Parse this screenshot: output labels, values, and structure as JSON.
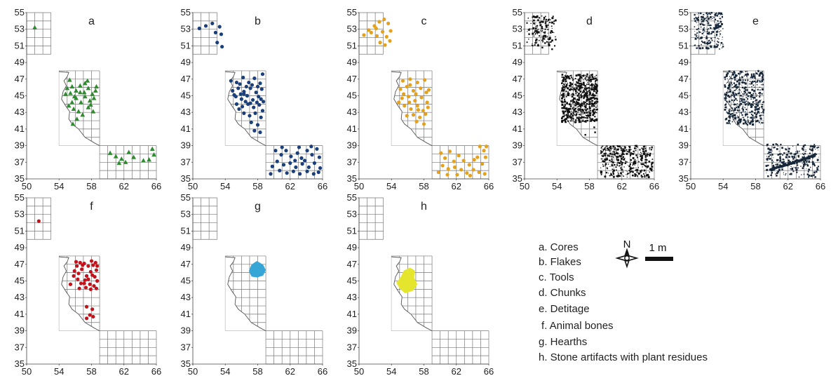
{
  "chart_data": {
    "type": "scatter",
    "panels": [
      {
        "label": "a",
        "name": "Cores",
        "color": "#2e8b2e",
        "marker": "triangle",
        "render": "points",
        "points": [
          [
            51,
            53.2
          ],
          [
            55.3,
            46.9
          ],
          [
            57.5,
            46.8
          ],
          [
            55,
            45.9
          ],
          [
            55.6,
            46.1
          ],
          [
            56.1,
            45.6
          ],
          [
            56.6,
            46.2
          ],
          [
            57.1,
            45.4
          ],
          [
            57.6,
            45.9
          ],
          [
            58.1,
            45.2
          ],
          [
            58.6,
            46.1
          ],
          [
            58.3,
            44.7
          ],
          [
            57.8,
            44.4
          ],
          [
            57.2,
            44.9
          ],
          [
            56.7,
            44.2
          ],
          [
            56.1,
            44.7
          ],
          [
            55.6,
            44.2
          ],
          [
            55.2,
            43.8
          ],
          [
            55.8,
            43.4
          ],
          [
            56.4,
            43.1
          ],
          [
            56.9,
            42.7
          ],
          [
            57.6,
            43.6
          ],
          [
            58.2,
            43.1
          ],
          [
            56.2,
            42.2
          ],
          [
            55.7,
            41.6
          ],
          [
            54.8,
            45.2
          ],
          [
            55.4,
            45.3
          ],
          [
            57.2,
            46.5
          ],
          [
            58.5,
            45.6
          ],
          [
            57.9,
            43.9
          ],
          [
            56.6,
            45.4
          ],
          [
            55.9,
            44.9
          ],
          [
            60.3,
            38.1
          ],
          [
            61,
            37.7
          ],
          [
            61.7,
            37.4
          ],
          [
            62.6,
            38.2
          ],
          [
            63.2,
            37.6
          ],
          [
            64.4,
            37.2
          ],
          [
            65.1,
            37.3
          ],
          [
            65.5,
            38.6
          ],
          [
            65.7,
            37.9
          ],
          [
            62.2,
            37
          ],
          [
            61.4,
            36.9
          ]
        ]
      },
      {
        "label": "b",
        "name": "Flakes",
        "color": "#1a3f7a",
        "marker": "circle",
        "render": "points",
        "points": [
          [
            50.8,
            53.1
          ],
          [
            51.6,
            53.4
          ],
          [
            52.4,
            53.7
          ],
          [
            52.8,
            52.6
          ],
          [
            53.3,
            53.3
          ],
          [
            53.5,
            52.4
          ],
          [
            53,
            51.4
          ],
          [
            53.6,
            50.9
          ],
          [
            54.7,
            46.8
          ],
          [
            55.4,
            46.6
          ],
          [
            56.2,
            47.2
          ],
          [
            56.9,
            46.6
          ],
          [
            57.6,
            47.1
          ],
          [
            58.3,
            46.5
          ],
          [
            58.6,
            47.6
          ],
          [
            54.9,
            45.6
          ],
          [
            55.6,
            45.9
          ],
          [
            56.3,
            45.5
          ],
          [
            57.1,
            45.9
          ],
          [
            57.8,
            45.4
          ],
          [
            58.5,
            45.8
          ],
          [
            55.3,
            44.9
          ],
          [
            56,
            44.6
          ],
          [
            56.7,
            45
          ],
          [
            57.4,
            44.5
          ],
          [
            58.1,
            44.9
          ],
          [
            58.7,
            44.3
          ],
          [
            55.4,
            44
          ],
          [
            56.1,
            43.7
          ],
          [
            56.8,
            44
          ],
          [
            57.5,
            43.6
          ],
          [
            58.2,
            43.9
          ],
          [
            58.6,
            43.2
          ],
          [
            56.3,
            42.9
          ],
          [
            57,
            42.6
          ],
          [
            57.7,
            42.9
          ],
          [
            58.4,
            42.4
          ],
          [
            57.2,
            41.8
          ],
          [
            58,
            41.5
          ],
          [
            57.6,
            40.8
          ],
          [
            58.3,
            40.6
          ],
          [
            55.8,
            46.4
          ],
          [
            56.6,
            46.1
          ],
          [
            57.3,
            46.3
          ],
          [
            58,
            46.1
          ],
          [
            55.1,
            45.1
          ],
          [
            55.9,
            45.2
          ],
          [
            56.5,
            44.3
          ],
          [
            57.1,
            44.1
          ],
          [
            57.9,
            44.2
          ],
          [
            58.4,
            44.6
          ],
          [
            56.3,
            45.2
          ],
          [
            55.7,
            43.4
          ],
          [
            60.2,
            38.4
          ],
          [
            60.9,
            37.9
          ],
          [
            61.5,
            38.4
          ],
          [
            62.1,
            37.7
          ],
          [
            62.9,
            38.1
          ],
          [
            63.4,
            37.5
          ],
          [
            64.1,
            38.4
          ],
          [
            64.7,
            37.9
          ],
          [
            65.3,
            38.6
          ],
          [
            65.6,
            37.6
          ],
          [
            60.4,
            37.1
          ],
          [
            61.2,
            36.7
          ],
          [
            62,
            36.9
          ],
          [
            62.7,
            36.4
          ],
          [
            63.5,
            36.8
          ],
          [
            64.3,
            36.4
          ],
          [
            65,
            36.9
          ],
          [
            65.7,
            36.3
          ],
          [
            60.7,
            36
          ],
          [
            61.6,
            35.7
          ],
          [
            62.4,
            35.9
          ],
          [
            63.2,
            35.6
          ],
          [
            64.1,
            35.9
          ],
          [
            64.9,
            35.6
          ],
          [
            65.5,
            35.8
          ],
          [
            59.6,
            35.6
          ],
          [
            59.8,
            36.5
          ],
          [
            62.6,
            37.2
          ],
          [
            63.8,
            37.2
          ],
          [
            64.6,
            38.9
          ],
          [
            61,
            38.8
          ],
          [
            63.1,
            38.8
          ]
        ]
      },
      {
        "label": "c",
        "name": "Tools",
        "color": "#e3a11e",
        "marker": "circle",
        "render": "points",
        "points": [
          [
            50.6,
            52.3
          ],
          [
            51.2,
            52.9
          ],
          [
            51.9,
            53.4
          ],
          [
            52.5,
            53.9
          ],
          [
            53.1,
            54.2
          ],
          [
            53.6,
            53.7
          ],
          [
            52.2,
            52.2
          ],
          [
            52.9,
            52.7
          ],
          [
            53.4,
            52.1
          ],
          [
            52.6,
            51.4
          ],
          [
            53.2,
            51.1
          ],
          [
            53.8,
            51.6
          ],
          [
            51.5,
            52.6
          ],
          [
            53.9,
            52.8
          ],
          [
            52.1,
            53.1
          ],
          [
            55.4,
            46.8
          ],
          [
            56.3,
            47
          ],
          [
            57.2,
            46.6
          ],
          [
            58.1,
            46.9
          ],
          [
            55.1,
            45.8
          ],
          [
            55.9,
            46.1
          ],
          [
            56.7,
            45.6
          ],
          [
            57.6,
            45.9
          ],
          [
            58.3,
            45.4
          ],
          [
            55.3,
            44.7
          ],
          [
            56.1,
            44.9
          ],
          [
            56.9,
            44.4
          ],
          [
            57.7,
            44.8
          ],
          [
            58.4,
            44.2
          ],
          [
            55.6,
            43.8
          ],
          [
            56.4,
            43.4
          ],
          [
            57.2,
            43.8
          ],
          [
            57.9,
            43.2
          ],
          [
            58.5,
            43.6
          ],
          [
            56.7,
            42.7
          ],
          [
            57.5,
            42.4
          ],
          [
            58.2,
            42.8
          ],
          [
            57.1,
            41.9
          ],
          [
            58,
            41.6
          ],
          [
            55.9,
            42.6
          ],
          [
            56.3,
            46.3
          ],
          [
            55.5,
            45.2
          ],
          [
            57,
            45.2
          ],
          [
            54.9,
            44.2
          ],
          [
            58.6,
            45.7
          ],
          [
            57.3,
            43.3
          ],
          [
            56.2,
            44.2
          ],
          [
            60.1,
            38.1
          ],
          [
            60.6,
            37.5
          ],
          [
            61.2,
            38.3
          ],
          [
            61.7,
            37.1
          ],
          [
            62.3,
            37.8
          ],
          [
            62.9,
            37.2
          ],
          [
            63.6,
            36.7
          ],
          [
            64.2,
            37.3
          ],
          [
            64.9,
            38.9
          ],
          [
            65.4,
            38.4
          ],
          [
            65.7,
            38.9
          ],
          [
            60.3,
            36.6
          ],
          [
            61,
            36.2
          ],
          [
            61.8,
            36.4
          ],
          [
            62.6,
            36.1
          ],
          [
            63.3,
            35.7
          ],
          [
            64.1,
            36.1
          ],
          [
            64.8,
            35.8
          ],
          [
            65.5,
            35.6
          ],
          [
            59.8,
            35.8
          ],
          [
            60.9,
            35.5
          ],
          [
            62.1,
            35.5
          ],
          [
            63.7,
            35.4
          ],
          [
            65.2,
            36.8
          ],
          [
            65.6,
            37.6
          ],
          [
            64.6,
            37.6
          ]
        ]
      },
      {
        "label": "d",
        "name": "Chunks",
        "color": "#111111",
        "marker": "dot",
        "render": "dense",
        "zones": [
          [
            50.3,
            51,
            53.9,
            54.6,
            140
          ],
          [
            54.6,
            41.8,
            59,
            47.6,
            650
          ],
          [
            59.4,
            35.2,
            65.8,
            39,
            380
          ]
        ],
        "points": [
          [
            51.4,
            51.6
          ],
          [
            52.2,
            50.8
          ],
          [
            53.4,
            50.6
          ],
          [
            55,
            47
          ],
          [
            54.6,
            46.5
          ],
          [
            58.7,
            40.6
          ],
          [
            57.5,
            40.3
          ],
          [
            58.6,
            41.2
          ]
        ]
      },
      {
        "label": "e",
        "name": "Detitage",
        "color": "#17273a",
        "marker": "dot",
        "render": "dense",
        "zones": [
          [
            50.4,
            50.6,
            54,
            55,
            220
          ],
          [
            54.2,
            41.5,
            59,
            48,
            500
          ],
          [
            59.3,
            35.2,
            65.9,
            39.2,
            260
          ]
        ],
        "band": [
          [
            59.8,
            36.1
          ],
          [
            65.3,
            37.8
          ]
        ],
        "points": [
          [
            51,
            51
          ],
          [
            52,
            51.3
          ]
        ]
      },
      {
        "label": "f",
        "name": "Animal bones",
        "color": "#c4121c",
        "marker": "circle",
        "render": "points",
        "points": [
          [
            51.5,
            52.2
          ],
          [
            55.4,
            44.6
          ],
          [
            55.8,
            45.6
          ],
          [
            56.2,
            46.8
          ],
          [
            56.4,
            45.9
          ],
          [
            56.8,
            46.4
          ],
          [
            57.1,
            47.1
          ],
          [
            57.4,
            45.6
          ],
          [
            57.6,
            46.8
          ],
          [
            57.9,
            46.1
          ],
          [
            58.2,
            46.9
          ],
          [
            58.4,
            45.5
          ],
          [
            58.6,
            46.3
          ],
          [
            58.7,
            45
          ],
          [
            57.8,
            44.6
          ],
          [
            57.3,
            44.2
          ],
          [
            56.7,
            44.7
          ],
          [
            57.9,
            44
          ],
          [
            58.3,
            44.4
          ],
          [
            58.5,
            47.2
          ],
          [
            56.1,
            47.3
          ],
          [
            56.3,
            45.2
          ],
          [
            57.6,
            45.2
          ],
          [
            58.1,
            45.7
          ],
          [
            56.9,
            46.9
          ],
          [
            57.2,
            45.1
          ],
          [
            58.7,
            46.8
          ],
          [
            58.6,
            44.1
          ],
          [
            57.4,
            41.9
          ],
          [
            58.1,
            41.6
          ],
          [
            57.8,
            40.9
          ],
          [
            57.4,
            40.5
          ],
          [
            58.2,
            40.7
          ],
          [
            57.1,
            44.7
          ],
          [
            56.5,
            44.1
          ],
          [
            58,
            47.4
          ],
          [
            56.6,
            47.2
          ],
          [
            55.9,
            46.2
          ]
        ]
      },
      {
        "label": "g",
        "name": "Hearths",
        "color": "#35a6d6",
        "marker": "blob",
        "render": "blob",
        "blob": [
          [
            57,
            46.2
          ],
          [
            57.3,
            46.9
          ],
          [
            57.9,
            47.3
          ],
          [
            58.6,
            46.9
          ],
          [
            58.9,
            46.3
          ],
          [
            58.6,
            45.7
          ],
          [
            57.9,
            45.5
          ],
          [
            57.3,
            45.6
          ]
        ]
      },
      {
        "label": "h",
        "name": "Stone artifacts with plant residues",
        "color": "#e5e52e",
        "marker": "blob",
        "render": "blob",
        "blob": [
          [
            54.7,
            44.8
          ],
          [
            55.2,
            45.4
          ],
          [
            55.6,
            46.2
          ],
          [
            56.3,
            46.5
          ],
          [
            56.8,
            46.2
          ],
          [
            56.7,
            45.4
          ],
          [
            57.1,
            44.6
          ],
          [
            56.6,
            43.9
          ],
          [
            55.7,
            43.6
          ],
          [
            55.1,
            44.1
          ]
        ]
      }
    ],
    "x_ticks": [
      50,
      54,
      58,
      62,
      66
    ],
    "y_ticks": [
      35,
      37,
      39,
      41,
      43,
      45,
      47,
      49,
      51,
      53,
      55
    ],
    "xlim": [
      50,
      66
    ],
    "ylim": [
      35,
      55
    ],
    "grid": true,
    "legend_placement": "bottom-right"
  },
  "legend": {
    "items": [
      "a. Cores",
      "b. Flakes",
      "c. Tools",
      "d. Chunks",
      "e. Detitage",
      "f. Animal bones",
      "g. Hearths",
      "h. Stone artifacts with plant residues"
    ]
  },
  "compass": {
    "label": "N",
    "icon": "north-arrow-compass-icon"
  },
  "scale_bar": {
    "label": "1 m",
    "icon": "scale-bar-icon"
  }
}
